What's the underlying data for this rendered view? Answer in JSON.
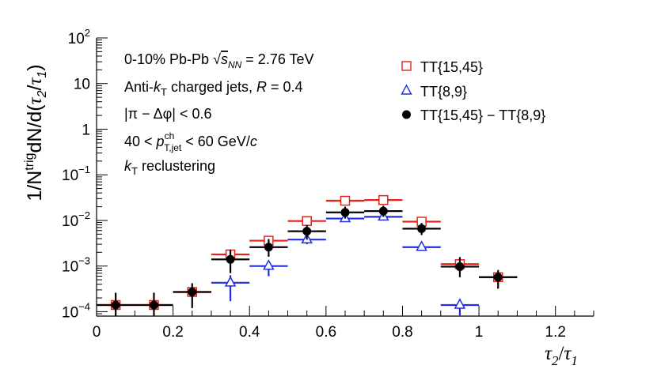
{
  "chart_data": {
    "type": "scatter",
    "ylabel_parts": {
      "prefix": "1/N",
      "sup": "trig",
      "mid": "dN/d(",
      "tau": "τ",
      "sub2": "2",
      "slash": "/",
      "sub1": "1",
      "close": ")"
    },
    "xlabel_parts": {
      "tau": "τ",
      "sub2": "2",
      "slash": "/",
      "sub1": "1"
    },
    "x_axis": {
      "min": 0,
      "max": 1.3,
      "scale": "linear",
      "tick_labels": [
        "0",
        "0.2",
        "0.4",
        "0.6",
        "0.8",
        "1",
        "1.2"
      ],
      "tick_values": [
        0,
        0.2,
        0.4,
        0.6,
        0.8,
        1.0,
        1.2
      ]
    },
    "y_axis": {
      "min": 8e-05,
      "max": 100,
      "scale": "log",
      "tick_labels": [
        {
          "base": "10",
          "exp": "2"
        },
        {
          "base": "10",
          "exp": ""
        },
        {
          "base": "1",
          "exp": ""
        },
        {
          "base": "10",
          "exp": "−1"
        },
        {
          "base": "10",
          "exp": "−2"
        },
        {
          "base": "10",
          "exp": "−3"
        },
        {
          "base": "10",
          "exp": "−4"
        }
      ],
      "tick_values": [
        100,
        10,
        1,
        0.1,
        0.01,
        0.001,
        0.0001
      ]
    },
    "annotations": {
      "line1": {
        "a": "0-10% Pb-Pb ",
        "sqrt": "s",
        "sqrt_sub": "NN",
        "b": " = 2.76 TeV"
      },
      "line2": {
        "a": "Anti-",
        "k": "k",
        "ksub": "T",
        "b": "  charged jets, ",
        "r": "R",
        "c": " = 0.4"
      },
      "line3": {
        "a": "|π − Δφ| < 0.6"
      },
      "line4": {
        "a": "40 < ",
        "p": "p",
        "psup": "ch",
        "psub": "T,jet",
        "b": " < 60 GeV/",
        "c": "c"
      },
      "line5": {
        "k": "k",
        "ksub": "T",
        "b": " reclustering"
      }
    },
    "legend_position": "top-right",
    "series": [
      {
        "name": "TT{15,45}",
        "marker": "open-square",
        "color": "#e8201a",
        "x": [
          0.05,
          0.15,
          0.25,
          0.35,
          0.45,
          0.55,
          0.65,
          0.75,
          0.85,
          0.95,
          1.05
        ],
        "y": [
          0.00014,
          0.00014,
          0.00027,
          0.0018,
          0.0036,
          0.0097,
          0.027,
          0.028,
          0.0094,
          0.0011,
          0.00057
        ],
        "xerr": [
          0.05,
          0.05,
          0.05,
          0.05,
          0.05,
          0.05,
          0.05,
          0.05,
          0.05,
          0.05,
          0.05
        ]
      },
      {
        "name": "TT{8,9}",
        "marker": "open-triangle",
        "color": "#1f2fe0",
        "x": [
          0.35,
          0.45,
          0.55,
          0.65,
          0.75,
          0.85,
          0.95
        ],
        "y": [
          0.00043,
          0.001,
          0.0038,
          0.011,
          0.012,
          0.0026,
          0.00014
        ],
        "xerr": [
          0.05,
          0.05,
          0.05,
          0.05,
          0.05,
          0.05,
          0.05
        ],
        "yerr_low": [
          0.00026,
          0.0004,
          0.0008,
          0.0,
          0.0,
          0.0,
          7e-05
        ],
        "yerr_high": [
          0.0002,
          0.0002,
          0.0004,
          0.0,
          0.0,
          0.0,
          5e-05
        ]
      },
      {
        "name": "TT{15,45} − TT{8,9}",
        "marker": "filled-circle",
        "color": "#000000",
        "x": [
          0.05,
          0.15,
          0.25,
          0.35,
          0.45,
          0.55,
          0.65,
          0.75,
          0.85,
          0.95,
          1.05
        ],
        "y": [
          0.00014,
          0.00014,
          0.00027,
          0.0014,
          0.0026,
          0.0058,
          0.015,
          0.016,
          0.0066,
          0.00097,
          0.00057
        ],
        "xerr": [
          0.05,
          0.05,
          0.05,
          0.05,
          0.05,
          0.05,
          0.05,
          0.05,
          0.05,
          0.05,
          0.05
        ],
        "yerr_low": [
          9e-05,
          7e-05,
          0.00015,
          0.0007,
          0.001,
          0.002,
          0.004,
          0.004,
          0.0018,
          0.0004,
          0.00025
        ],
        "yerr_high": [
          0.00012,
          0.00012,
          0.00015,
          0.0009,
          0.0013,
          0.0022,
          0.005,
          0.005,
          0.0022,
          0.0006,
          0.00025
        ]
      }
    ]
  }
}
